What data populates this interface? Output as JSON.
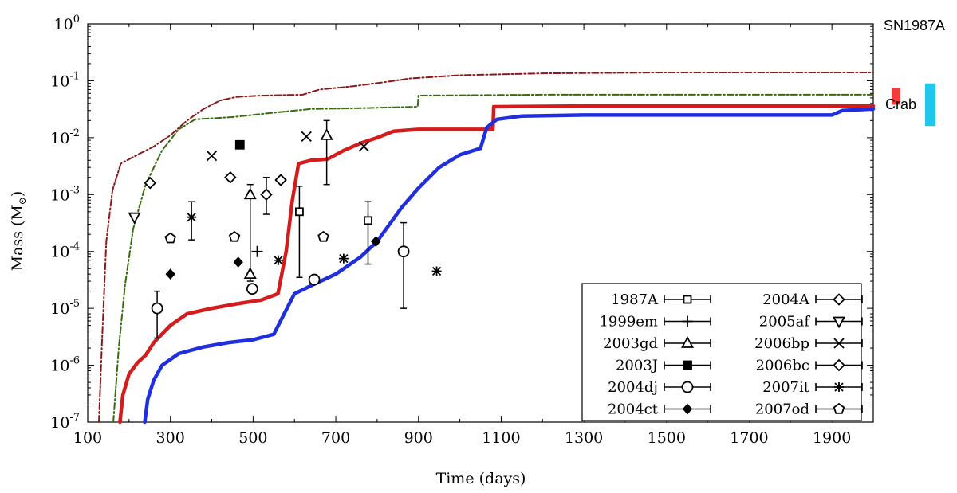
{
  "chart_data": {
    "type": "scatter",
    "title": "",
    "xlabel": "Time (days)",
    "ylabel_text": "Mass (M",
    "ylabel_sub": "⊙",
    "ylabel_close": ")",
    "xlim": [
      100,
      2000
    ],
    "ylim": [
      1e-07,
      1
    ],
    "yscale": "log",
    "x_ticks": [
      100,
      300,
      500,
      700,
      900,
      1100,
      1300,
      1500,
      1700,
      1900
    ],
    "x_tick_labels": [
      "100",
      "300",
      "500",
      "700",
      "900",
      "1100",
      "1300",
      "1500",
      "1700",
      "1900"
    ],
    "y_ticks": [
      {
        "value": 1e-07,
        "base": "10",
        "exp": "-7"
      },
      {
        "value": 1e-06,
        "base": "10",
        "exp": "-6"
      },
      {
        "value": 1e-05,
        "base": "10",
        "exp": "-5"
      },
      {
        "value": 0.0001,
        "base": "10",
        "exp": "-4"
      },
      {
        "value": 0.001,
        "base": "10",
        "exp": "-3"
      },
      {
        "value": 0.01,
        "base": "10",
        "exp": "-2"
      },
      {
        "value": 0.1,
        "base": "10",
        "exp": "-1"
      },
      {
        "value": 1,
        "base": "10",
        "exp": "0"
      }
    ],
    "models": [
      {
        "name": "model-dark-red-dotdash",
        "color": "#8b1a1a",
        "style": "dotdash",
        "points": [
          [
            127,
            1e-07
          ],
          [
            135,
            3e-06
          ],
          [
            145,
            0.00015
          ],
          [
            160,
            0.0012
          ],
          [
            180,
            0.0035
          ],
          [
            220,
            0.005
          ],
          [
            260,
            0.007
          ],
          [
            300,
            0.011
          ],
          [
            340,
            0.02
          ],
          [
            380,
            0.032
          ],
          [
            420,
            0.045
          ],
          [
            460,
            0.052
          ],
          [
            520,
            0.055
          ],
          [
            620,
            0.057
          ],
          [
            660,
            0.07
          ],
          [
            740,
            0.08
          ],
          [
            820,
            0.095
          ],
          [
            880,
            0.11
          ],
          [
            1000,
            0.125
          ],
          [
            1200,
            0.135
          ],
          [
            1500,
            0.14
          ],
          [
            2000,
            0.14
          ]
        ]
      },
      {
        "name": "model-green-dotdash",
        "color": "#3a6b12",
        "style": "dotdash",
        "points": [
          [
            162,
            1e-07
          ],
          [
            175,
            2e-06
          ],
          [
            190,
            2.5e-05
          ],
          [
            210,
            0.00025
          ],
          [
            240,
            0.0015
          ],
          [
            280,
            0.006
          ],
          [
            320,
            0.014
          ],
          [
            360,
            0.021
          ],
          [
            450,
            0.023
          ],
          [
            540,
            0.027
          ],
          [
            640,
            0.032
          ],
          [
            760,
            0.033
          ],
          [
            898,
            0.035
          ],
          [
            900,
            0.055
          ],
          [
            1200,
            0.057
          ],
          [
            2000,
            0.057
          ]
        ]
      },
      {
        "name": "model-red-solid",
        "color": "#d41c1c",
        "style": "solid",
        "points": [
          [
            178,
            1e-07
          ],
          [
            185,
            3e-07
          ],
          [
            200,
            7e-07
          ],
          [
            220,
            1.1e-06
          ],
          [
            240,
            1.5e-06
          ],
          [
            260,
            2.5e-06
          ],
          [
            300,
            5e-06
          ],
          [
            340,
            8e-06
          ],
          [
            400,
            1e-05
          ],
          [
            460,
            1.2e-05
          ],
          [
            520,
            1.4e-05
          ],
          [
            560,
            1.8e-05
          ],
          [
            580,
            0.0001
          ],
          [
            595,
            0.0008
          ],
          [
            610,
            0.0035
          ],
          [
            640,
            0.004
          ],
          [
            680,
            0.0042
          ],
          [
            720,
            0.006
          ],
          [
            760,
            0.008
          ],
          [
            800,
            0.01
          ],
          [
            840,
            0.013
          ],
          [
            900,
            0.014
          ],
          [
            1000,
            0.014
          ],
          [
            1080,
            0.014
          ],
          [
            1082,
            0.035
          ],
          [
            1300,
            0.036
          ],
          [
            2000,
            0.036
          ]
        ]
      },
      {
        "name": "model-blue-solid",
        "color": "#1f2fe0",
        "style": "solid",
        "points": [
          [
            238,
            1e-07
          ],
          [
            245,
            2.5e-07
          ],
          [
            260,
            5.5e-07
          ],
          [
            280,
            1e-06
          ],
          [
            320,
            1.6e-06
          ],
          [
            380,
            2.1e-06
          ],
          [
            440,
            2.5e-06
          ],
          [
            500,
            2.8e-06
          ],
          [
            550,
            3.5e-06
          ],
          [
            575,
            8e-06
          ],
          [
            600,
            1.8e-05
          ],
          [
            640,
            2.5e-05
          ],
          [
            700,
            4e-05
          ],
          [
            760,
            8e-05
          ],
          [
            800,
            0.00015
          ],
          [
            860,
            0.0006
          ],
          [
            900,
            0.0013
          ],
          [
            950,
            0.003
          ],
          [
            1000,
            0.005
          ],
          [
            1050,
            0.0065
          ],
          [
            1065,
            0.015
          ],
          [
            1090,
            0.021
          ],
          [
            1150,
            0.024
          ],
          [
            1300,
            0.025
          ],
          [
            1600,
            0.025
          ],
          [
            1900,
            0.025
          ],
          [
            1925,
            0.03
          ],
          [
            2000,
            0.032
          ]
        ]
      }
    ],
    "series": [
      {
        "name": "1987A",
        "marker": "square",
        "points": [
          {
            "x": 612,
            "y": 0.0005,
            "lo": 3.5e-05,
            "hi": 0.0014
          },
          {
            "x": 778,
            "y": 0.00035,
            "lo": 6e-05,
            "hi": 0.00075
          }
        ]
      },
      {
        "name": "1999em",
        "marker": "plus",
        "points": [
          {
            "x": 510,
            "y": 0.0001
          }
        ]
      },
      {
        "name": "2003gd",
        "marker": "triangle-up",
        "points": [
          {
            "x": 493,
            "y": 0.001,
            "lo": 3e-05,
            "hi": 0.0015
          },
          {
            "x": 678,
            "y": 0.011,
            "lo": 0.0015,
            "hi": 0.02
          },
          {
            "x": 493,
            "y": 4e-05
          }
        ]
      },
      {
        "name": "2003J",
        "marker": "square-filled",
        "points": [
          {
            "x": 468,
            "y": 0.0075
          }
        ]
      },
      {
        "name": "2004dj",
        "marker": "circle",
        "points": [
          {
            "x": 268,
            "y": 1e-05,
            "lo": 3e-06,
            "hi": 2e-05
          },
          {
            "x": 498,
            "y": 2.2e-05
          },
          {
            "x": 648,
            "y": 3.2e-05
          },
          {
            "x": 864,
            "y": 0.0001,
            "lo": 1e-05,
            "hi": 0.00032
          }
        ]
      },
      {
        "name": "2004ct",
        "marker": "diamond-filled",
        "points": [
          {
            "x": 300,
            "y": 4e-05
          },
          {
            "x": 464,
            "y": 6.5e-05
          },
          {
            "x": 797,
            "y": 0.00015
          }
        ]
      },
      {
        "name": "2004A",
        "marker": "diamond",
        "points": [
          {
            "x": 251,
            "y": 0.0016
          },
          {
            "x": 445,
            "y": 0.002
          },
          {
            "x": 567,
            "y": 0.0018
          }
        ]
      },
      {
        "name": "2005af",
        "marker": "triangle-down",
        "points": [
          {
            "x": 213,
            "y": 0.0004
          }
        ]
      },
      {
        "name": "2006bp",
        "marker": "cross",
        "points": [
          {
            "x": 400,
            "y": 0.0048
          },
          {
            "x": 629,
            "y": 0.0105
          },
          {
            "x": 768,
            "y": 0.007
          }
        ]
      },
      {
        "name": "2006bc",
        "marker": "diamond",
        "points": [
          {
            "x": 532,
            "y": 0.001,
            "lo": 0.00045,
            "hi": 0.002
          }
        ]
      },
      {
        "name": "2007it",
        "marker": "asterisk",
        "points": [
          {
            "x": 351,
            "y": 0.0004,
            "lo": 0.00016,
            "hi": 0.00075
          },
          {
            "x": 561,
            "y": 7e-05
          },
          {
            "x": 719,
            "y": 7.5e-05
          },
          {
            "x": 944,
            "y": 4.5e-05
          }
        ]
      },
      {
        "name": "2007od",
        "marker": "pentagon",
        "points": [
          {
            "x": 300,
            "y": 0.00017
          },
          {
            "x": 455,
            "y": 0.00018
          },
          {
            "x": 670,
            "y": 0.00018
          }
        ]
      }
    ],
    "legend": {
      "placement": "bottom-right",
      "columns": [
        [
          {
            "label": "1987A",
            "marker": "square"
          },
          {
            "label": "1999em",
            "marker": "plus"
          },
          {
            "label": "2003gd",
            "marker": "triangle-up"
          },
          {
            "label": "2003J",
            "marker": "square-filled"
          },
          {
            "label": "2004dj",
            "marker": "circle"
          },
          {
            "label": "2004ct",
            "marker": "diamond-filled"
          }
        ],
        [
          {
            "label": "2004A",
            "marker": "diamond"
          },
          {
            "label": "2005af",
            "marker": "triangle-down"
          },
          {
            "label": "2006bp",
            "marker": "cross"
          },
          {
            "label": "2006bc",
            "marker": "diamond"
          },
          {
            "label": "2007it",
            "marker": "asterisk"
          },
          {
            "label": "2007od",
            "marker": "pentagon"
          }
        ]
      ]
    },
    "side_annotations": [
      {
        "label": "SN1987A",
        "color": "#f53c3c",
        "ymin": 0.038,
        "ymax": 0.075
      },
      {
        "label": "Crab",
        "color": "#1ec8ec",
        "ymin": 0.016,
        "ymax": 0.09
      }
    ]
  }
}
